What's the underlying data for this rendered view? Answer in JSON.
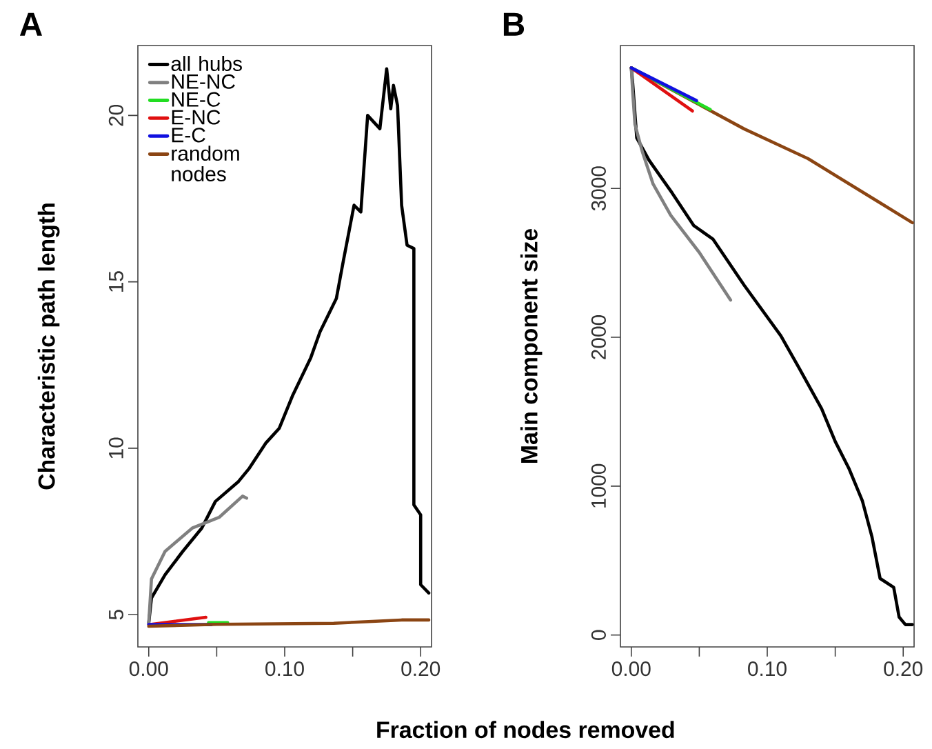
{
  "chart_data": [
    {
      "type": "line",
      "title": "A",
      "xlabel": "Fraction of nodes removed",
      "ylabel": "Characteristic path length",
      "xlim": [
        -0.008,
        0.208
      ],
      "ylim": [
        4.03,
        22.1
      ],
      "xticks": [
        {
          "value": 0,
          "label": "0.00"
        },
        {
          "value": 0.05,
          "label": null
        },
        {
          "value": 0.1,
          "label": "0.10"
        },
        {
          "value": 0.15,
          "label": null
        },
        {
          "value": 0.2,
          "label": "0.20"
        }
      ],
      "yticks": [
        5,
        10,
        15,
        20
      ],
      "legend": "top left",
      "marker": "none",
      "series": [
        {
          "name": "all hubs",
          "color": "#000000",
          "x": [
            0,
            0.002,
            0.012,
            0.025,
            0.039,
            0.049,
            0.066,
            0.074,
            0.086,
            0.096,
            0.106,
            0.119,
            0.126,
            0.138,
            0.143,
            0.151,
            0.156,
            0.161,
            0.17,
            0.175,
            0.178,
            0.18,
            0.183,
            0.186,
            0.19,
            0.195,
            0.195,
            0.2,
            0.2,
            0.206
          ],
          "values": [
            4.75,
            5.5,
            6.2,
            6.9,
            7.6,
            8.4,
            9.0,
            9.4,
            10.15,
            10.6,
            11.6,
            12.7,
            13.5,
            14.5,
            15.6,
            17.3,
            17.1,
            20.0,
            19.6,
            21.4,
            20.2,
            20.9,
            20.3,
            17.3,
            16.1,
            16.0,
            8.3,
            8.0,
            5.9,
            5.65
          ]
        },
        {
          "name": "NE-NC",
          "color": "#808080",
          "x": [
            0,
            0.002,
            0.012,
            0.032,
            0.052,
            0.069,
            0.072
          ],
          "values": [
            4.75,
            6.07,
            6.9,
            7.6,
            7.93,
            8.56,
            8.5
          ]
        },
        {
          "name": "NE-C",
          "color": "#22dd22",
          "x": [
            0.044,
            0.058
          ],
          "values": [
            4.76,
            4.76
          ]
        },
        {
          "name": "E-NC",
          "color": "#e01010",
          "x": [
            0,
            0.042
          ],
          "values": [
            4.7,
            4.92
          ]
        },
        {
          "name": "E-C",
          "color": "#1010e0",
          "x": [
            0,
            0.046
          ],
          "values": [
            4.7,
            4.7
          ]
        },
        {
          "name": "random nodes",
          "color": "#8b4513",
          "x": [
            0,
            0.05,
            0.136,
            0.186,
            0.206
          ],
          "values": [
            4.65,
            4.71,
            4.74,
            4.84,
            4.84
          ]
        }
      ]
    },
    {
      "type": "line",
      "title": "B",
      "ylabel": "Main component size",
      "xlim": [
        -0.008,
        0.208
      ],
      "ylim": [
        -80,
        3960
      ],
      "xticks": [
        {
          "value": 0,
          "label": "0.00"
        },
        {
          "value": 0.05,
          "label": null
        },
        {
          "value": 0.1,
          "label": "0.10"
        },
        {
          "value": 0.15,
          "label": null
        },
        {
          "value": 0.2,
          "label": "0.20"
        }
      ],
      "yticks": [
        0,
        1000,
        2000,
        3000
      ],
      "marker": "none",
      "series": [
        {
          "color": "#000000",
          "x": [
            0,
            0.001,
            0.004,
            0.013,
            0.03,
            0.046,
            0.06,
            0.083,
            0.11,
            0.123,
            0.14,
            0.15,
            0.16,
            0.17,
            0.177,
            0.183,
            0.193,
            0.197,
            0.2016,
            0.2067
          ],
          "values": [
            3810,
            3710,
            3340,
            3190,
            2970,
            2750,
            2660,
            2350,
            2010,
            1800,
            1520,
            1300,
            1120,
            900,
            660,
            380,
            320,
            120,
            70,
            70
          ]
        },
        {
          "color": "#808080",
          "x": [
            0,
            0.001,
            0.0027,
            0.008,
            0.016,
            0.029,
            0.05,
            0.073
          ],
          "values": [
            3810,
            3650,
            3430,
            3250,
            3030,
            2820,
            2570,
            2250
          ]
        },
        {
          "color": "#8b4513",
          "x": [
            0,
            0.083,
            0.13,
            0.2067
          ],
          "values": [
            3810,
            3400,
            3200,
            2770
          ]
        },
        {
          "color": "#22dd22",
          "x": [
            0,
            0.058
          ],
          "values": [
            3810,
            3530
          ]
        },
        {
          "color": "#e01010",
          "x": [
            0,
            0.045
          ],
          "values": [
            3810,
            3520
          ]
        },
        {
          "color": "#1010e0",
          "x": [
            0,
            0.048
          ],
          "values": [
            3810,
            3590
          ]
        }
      ]
    }
  ]
}
